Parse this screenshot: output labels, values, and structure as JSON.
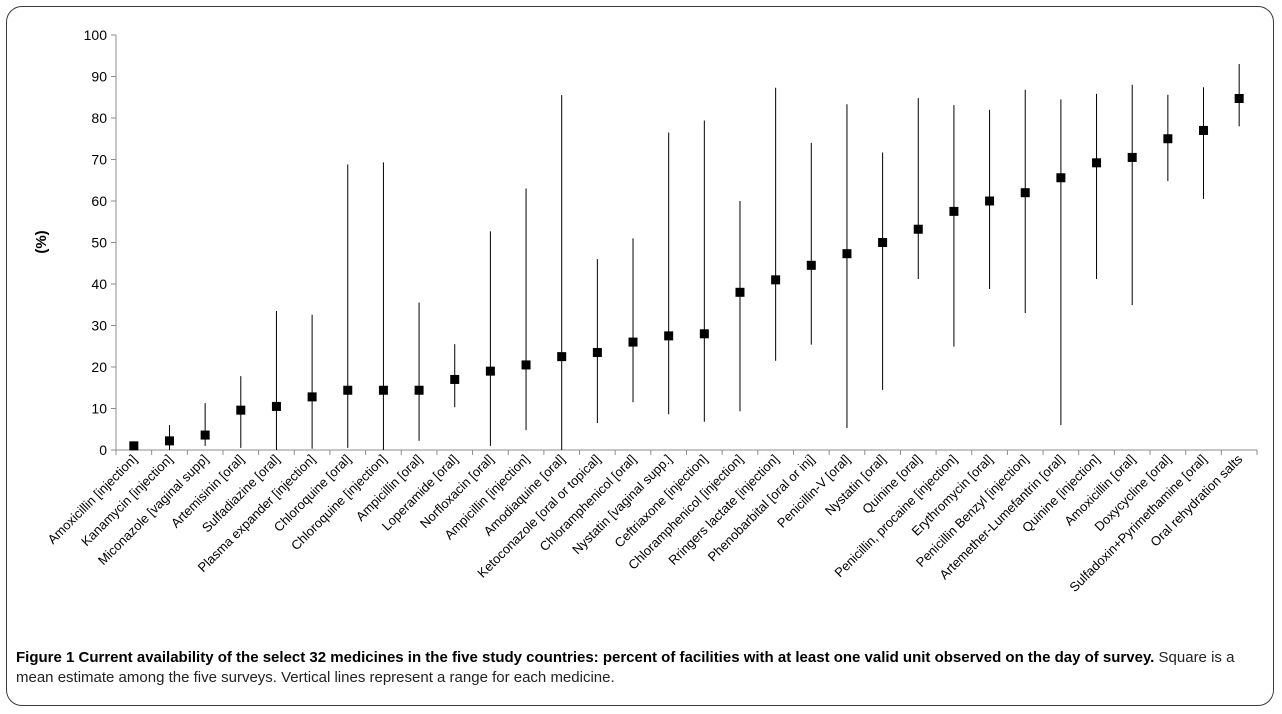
{
  "chart_data": {
    "type": "scatter",
    "ylabel": "(%)",
    "ylim": [
      0,
      100
    ],
    "yticks": [
      0,
      10,
      20,
      30,
      40,
      50,
      60,
      70,
      80,
      90,
      100
    ],
    "grid": false,
    "marker": "square",
    "categories": [
      "Amoxicillin [injection]",
      "Kanamycin [injection]",
      "Miconazole [vaginal supp]",
      "Artemisinin [oral]",
      "Sulfadiazine [oral]",
      "Plasma expander [injection]",
      "Chloroquine [oral]",
      "Chloroquine [injection]",
      "Ampicillin [oral]",
      "Loperamide [oral]",
      "Norfloxacin [oral]",
      "Ampicillin [injection]",
      "Amodiaquine [oral]",
      "Ketoconazole [oral or topical]",
      "Chloramphenicol [oral]",
      "Nystatin [vaginal supp.]",
      "Ceftriaxone [injection]",
      "Chloramphenicol [injection]",
      "Rringers lactate [injection]",
      "Phenobarbital [oral or inj]",
      "Penicillin-V [oral]",
      "Nystatin [oral]",
      "Quinine [oral]",
      "Penicillin, procaine [injection]",
      "Erythromycin [oral]",
      "Penicillin Benzyl [injection]",
      "Artemether-Lumefantrin [oral]",
      "Quinine [injection]",
      "Amoxicillin [oral]",
      "Doxycycline [oral]",
      "Sulfadoxin+Pyrimethamine [oral]",
      "Oral rehydration salts"
    ],
    "mean": [
      1.0,
      2.2,
      3.6,
      9.6,
      10.5,
      12.8,
      14.4,
      14.4,
      14.4,
      17.0,
      19.0,
      20.5,
      22.5,
      23.5,
      26.0,
      27.5,
      28.0,
      38.0,
      41.0,
      44.5,
      47.3,
      50.0,
      53.2,
      57.5,
      60.0,
      62.0,
      65.6,
      69.2,
      70.5,
      75.0,
      77.0,
      84.7
    ],
    "min": [
      0.5,
      0.0,
      1.0,
      0.5,
      0.0,
      0.3,
      0.5,
      0.0,
      2.2,
      10.3,
      1.0,
      4.8,
      0.0,
      6.5,
      11.5,
      8.6,
      6.8,
      9.3,
      21.5,
      25.4,
      5.3,
      14.5,
      41.2,
      24.9,
      38.8,
      33.0,
      6.0,
      41.2,
      34.9,
      64.8,
      60.5,
      78.0
    ],
    "max": [
      1.5,
      6.0,
      11.3,
      17.8,
      33.5,
      32.6,
      68.8,
      69.3,
      35.5,
      25.5,
      52.7,
      63.0,
      85.5,
      46.0,
      51.0,
      76.5,
      79.4,
      60.0,
      87.3,
      74.0,
      83.3,
      71.7,
      84.8,
      83.1,
      82.0,
      86.8,
      84.5,
      85.8,
      88.0,
      85.6,
      87.4,
      93.0
    ]
  },
  "caption": {
    "title": "Figure 1 Current availability of the select 32 medicines in the five study countries: percent of facilities with at least one valid unit observed on the day of survey.",
    "body": "Square is a mean estimate among the five surveys. Vertical lines represent a range for each medicine."
  },
  "colors": {
    "axis": "#8c8c8c",
    "marker": "#000000",
    "range_line": "#000000",
    "frame": "#3a3a3a"
  }
}
